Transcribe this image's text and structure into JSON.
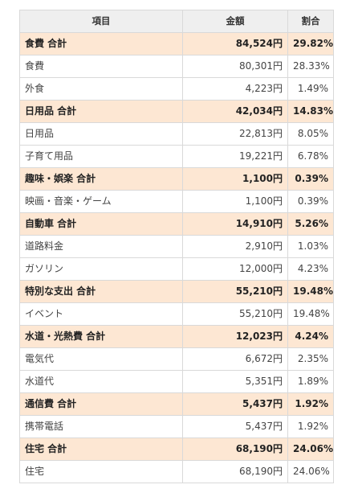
{
  "table": {
    "headers": {
      "item": "項目",
      "amount": "金額",
      "ratio": "割合"
    },
    "rows": [
      {
        "type": "subtotal",
        "item": "食費 合計",
        "amount": "84,524円",
        "ratio": "29.82%"
      },
      {
        "type": "item",
        "item": "食費",
        "amount": "80,301円",
        "ratio": "28.33%"
      },
      {
        "type": "item",
        "item": "外食",
        "amount": "4,223円",
        "ratio": "1.49%"
      },
      {
        "type": "subtotal",
        "item": "日用品 合計",
        "amount": "42,034円",
        "ratio": "14.83%"
      },
      {
        "type": "item",
        "item": "日用品",
        "amount": "22,813円",
        "ratio": "8.05%"
      },
      {
        "type": "item",
        "item": "子育て用品",
        "amount": "19,221円",
        "ratio": "6.78%"
      },
      {
        "type": "subtotal",
        "item": "趣味・娯楽 合計",
        "amount": "1,100円",
        "ratio": "0.39%"
      },
      {
        "type": "item",
        "item": "映画・音楽・ゲーム",
        "amount": "1,100円",
        "ratio": "0.39%"
      },
      {
        "type": "subtotal",
        "item": "自動車 合計",
        "amount": "14,910円",
        "ratio": "5.26%"
      },
      {
        "type": "item",
        "item": "道路料金",
        "amount": "2,910円",
        "ratio": "1.03%"
      },
      {
        "type": "item",
        "item": "ガソリン",
        "amount": "12,000円",
        "ratio": "4.23%"
      },
      {
        "type": "subtotal",
        "item": "特別な支出 合計",
        "amount": "55,210円",
        "ratio": "19.48%"
      },
      {
        "type": "item",
        "item": "イベント",
        "amount": "55,210円",
        "ratio": "19.48%"
      },
      {
        "type": "subtotal",
        "item": "水道・光熱費 合計",
        "amount": "12,023円",
        "ratio": "4.24%"
      },
      {
        "type": "item",
        "item": "電気代",
        "amount": "6,672円",
        "ratio": "2.35%"
      },
      {
        "type": "item",
        "item": "水道代",
        "amount": "5,351円",
        "ratio": "1.89%"
      },
      {
        "type": "subtotal",
        "item": "通信費 合計",
        "amount": "5,437円",
        "ratio": "1.92%"
      },
      {
        "type": "item",
        "item": "携帯電話",
        "amount": "5,437円",
        "ratio": "1.92%"
      },
      {
        "type": "subtotal",
        "item": "住宅 合計",
        "amount": "68,190円",
        "ratio": "24.06%"
      },
      {
        "type": "item",
        "item": "住宅",
        "amount": "68,190円",
        "ratio": "24.06%"
      }
    ]
  },
  "colors": {
    "header_bg": "#efefef",
    "subtotal_bg": "#fde7d3",
    "border": "#d9d9d9"
  }
}
